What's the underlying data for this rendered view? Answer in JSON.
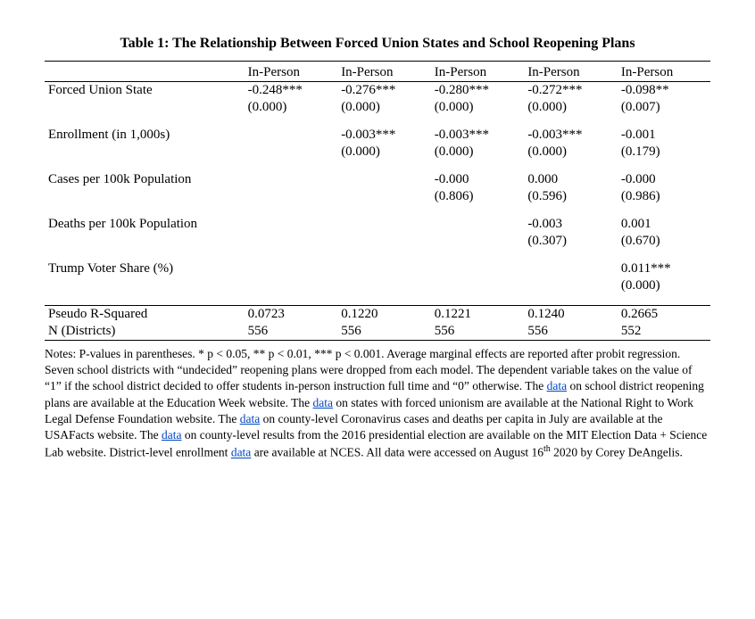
{
  "title": "Table 1: The Relationship Between Forced Union States and School Reopening Plans",
  "columns": [
    "In-Person",
    "In-Person",
    "In-Person",
    "In-Person",
    "In-Person"
  ],
  "rows": {
    "forcedUnion": {
      "label": "Forced Union State",
      "coef": [
        "-0.248***",
        "-0.276***",
        "-0.280***",
        "-0.272***",
        "-0.098**"
      ],
      "p": [
        "(0.000)",
        "(0.000)",
        "(0.000)",
        "(0.000)",
        "(0.007)"
      ]
    },
    "enrollment": {
      "label": "Enrollment (in 1,000s)",
      "coef": [
        "",
        "-0.003***",
        "-0.003***",
        "-0.003***",
        "-0.001"
      ],
      "p": [
        "",
        "(0.000)",
        "(0.000)",
        "(0.000)",
        "(0.179)"
      ]
    },
    "cases": {
      "label": "Cases per 100k Population",
      "coef": [
        "",
        "",
        "-0.000",
        "0.000",
        "-0.000"
      ],
      "p": [
        "",
        "",
        "(0.806)",
        "(0.596)",
        "(0.986)"
      ]
    },
    "deaths": {
      "label": "Deaths per 100k Population",
      "coef": [
        "",
        "",
        "",
        "-0.003",
        "0.001"
      ],
      "p": [
        "",
        "",
        "",
        "(0.307)",
        "(0.670)"
      ]
    },
    "trump": {
      "label": "Trump Voter Share (%)",
      "coef": [
        "",
        "",
        "",
        "",
        "0.011***"
      ],
      "p": [
        "",
        "",
        "",
        "",
        "(0.000)"
      ]
    }
  },
  "footer": {
    "r2": {
      "label": "Pseudo R-Squared",
      "vals": [
        "0.0723",
        "0.1220",
        "0.1221",
        "0.1240",
        "0.2665"
      ]
    },
    "n": {
      "label": "N (Districts)",
      "vals": [
        "556",
        "556",
        "556",
        "556",
        "552"
      ]
    }
  },
  "notes": {
    "pre1": "Notes: P-values in parentheses. * p < 0.05, ** p < 0.01, *** p < 0.001. Average marginal effects are reported after probit regression. Seven school districts with “undecided” reopening plans were dropped from each model. The dependent variable takes on the value of “1” if the school district decided to offer students in-person instruction full time and “0” otherwise. The ",
    "link1": "data",
    "post1": " on school district reopening plans are available at the Education Week website. The ",
    "link2": "data",
    "post2": " on states with forced unionism are available at the National Right to Work Legal Defense Foundation website. The ",
    "link3": "data",
    "post3": " on county-level Coronavirus cases and deaths per capita in July are available at the USAFacts website. The ",
    "link4": "data",
    "post4": " on county-level results from the 2016 presidential election are available on the MIT Election Data + Science Lab website. District-level enrollment ",
    "link5": "data",
    "post5": " are available at NCES. All data were accessed on August 16",
    "sup": "th",
    "post6": " 2020 by Corey DeAngelis."
  }
}
